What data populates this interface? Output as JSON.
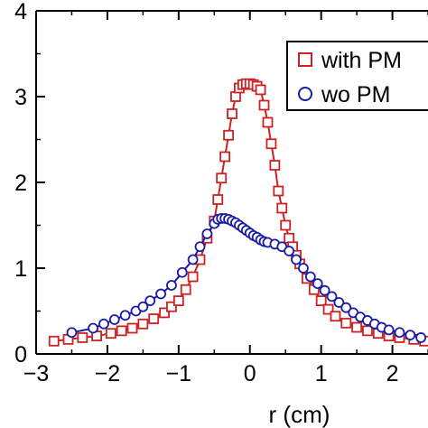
{
  "chart_data": {
    "type": "line",
    "xlabel": "r (cm)",
    "ylabel": "",
    "xlim": [
      -3,
      2.5
    ],
    "ylim": [
      0,
      4
    ],
    "xticks": [
      -3,
      -2,
      -1,
      0,
      1,
      2
    ],
    "yticks": [
      0,
      1,
      2,
      3,
      4
    ],
    "legend_position": "top-right",
    "series": [
      {
        "name": "with PM",
        "color": "#cc2222",
        "marker": "square",
        "x": [
          -2.75,
          -2.55,
          -2.35,
          -2.15,
          -1.95,
          -1.8,
          -1.65,
          -1.5,
          -1.35,
          -1.2,
          -1.1,
          -1.0,
          -0.9,
          -0.8,
          -0.7,
          -0.6,
          -0.5,
          -0.45,
          -0.4,
          -0.35,
          -0.3,
          -0.25,
          -0.2,
          -0.15,
          -0.1,
          -0.05,
          0.0,
          0.05,
          0.1,
          0.15,
          0.2,
          0.25,
          0.3,
          0.35,
          0.4,
          0.45,
          0.5,
          0.55,
          0.6,
          0.65,
          0.7,
          0.8,
          0.9,
          1.0,
          1.1,
          1.2,
          1.35,
          1.5,
          1.65,
          1.8,
          1.95,
          2.1,
          2.3,
          2.45
        ],
        "y": [
          0.15,
          0.17,
          0.19,
          0.21,
          0.24,
          0.27,
          0.3,
          0.35,
          0.41,
          0.48,
          0.55,
          0.62,
          0.75,
          0.9,
          1.1,
          1.35,
          1.55,
          1.8,
          2.05,
          2.3,
          2.55,
          2.8,
          3.0,
          3.1,
          3.14,
          3.15,
          3.15,
          3.14,
          3.12,
          3.08,
          2.9,
          2.7,
          2.45,
          2.2,
          1.9,
          1.7,
          1.5,
          1.35,
          1.25,
          1.15,
          1.05,
          0.88,
          0.75,
          0.62,
          0.52,
          0.44,
          0.36,
          0.31,
          0.27,
          0.24,
          0.21,
          0.19,
          0.17,
          0.15
        ]
      },
      {
        "name": "wo PM",
        "color": "#1a1aa8",
        "marker": "circle",
        "x": [
          -2.5,
          -2.2,
          -2.05,
          -1.9,
          -1.75,
          -1.6,
          -1.5,
          -1.4,
          -1.25,
          -1.1,
          -0.95,
          -0.8,
          -0.7,
          -0.6,
          -0.5,
          -0.45,
          -0.4,
          -0.35,
          -0.3,
          -0.25,
          -0.2,
          -0.15,
          -0.1,
          -0.05,
          0.0,
          0.05,
          0.1,
          0.15,
          0.2,
          0.25,
          0.35,
          0.45,
          0.55,
          0.65,
          0.75,
          0.85,
          0.95,
          1.05,
          1.15,
          1.25,
          1.35,
          1.45,
          1.55,
          1.65,
          1.75,
          1.85,
          1.95,
          2.1,
          2.25,
          2.4
        ],
        "y": [
          0.25,
          0.3,
          0.35,
          0.4,
          0.45,
          0.5,
          0.55,
          0.62,
          0.7,
          0.8,
          0.95,
          1.1,
          1.25,
          1.4,
          1.52,
          1.57,
          1.58,
          1.58,
          1.57,
          1.55,
          1.53,
          1.5,
          1.47,
          1.44,
          1.41,
          1.38,
          1.36,
          1.33,
          1.31,
          1.3,
          1.28,
          1.25,
          1.2,
          1.1,
          1.0,
          0.9,
          0.82,
          0.74,
          0.67,
          0.6,
          0.54,
          0.48,
          0.43,
          0.39,
          0.35,
          0.31,
          0.28,
          0.25,
          0.22,
          0.19
        ]
      }
    ]
  }
}
